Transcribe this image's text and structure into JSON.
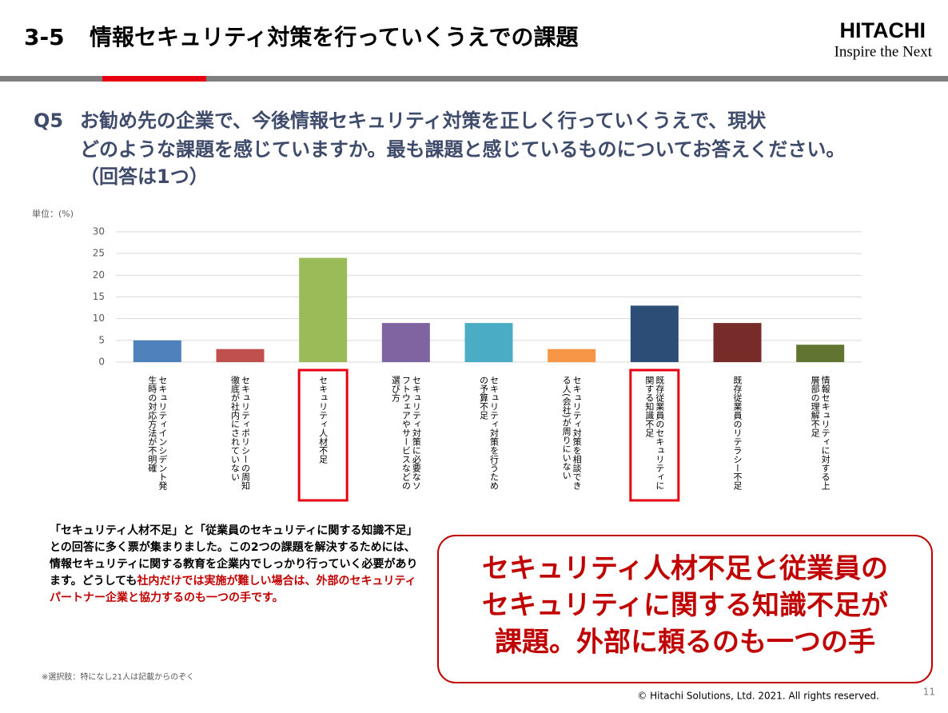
{
  "header": {
    "number": "3-5",
    "title": "情報セキュリティ対策を行っていくうえでの課題",
    "logo": "HITACHI",
    "tagline": "Inspire the Next"
  },
  "question": {
    "label": "Q5",
    "lines": [
      "お勧め先の企業で、今後情報セキュリティ対策を正しく行っていくうえで、現状",
      "どのような課題を感じていますか。最も課題と感じているものについてお答えください。",
      "（回答は1つ）"
    ]
  },
  "chart_data": {
    "type": "bar",
    "unit_label": "単位：(%)",
    "categories": [
      "セキュリティインシデント発生時の対応方法が不明確",
      "セキュリティポリシーの周知徹底が社内にされていない",
      "セキュリティ人材不足",
      "セキュリティ対策に必要なソフトウェアやサービスなどの選び方",
      "セキュリティ対策を行うための予算不足",
      "セキュリティ対策を相談できる人(会社)が周りにいない",
      "既存従業員のセキュリティに関する知識不足",
      "既存従業員のリテラシー不足",
      "情報セキュリティに対する上層部の理解不足"
    ],
    "values": [
      5,
      3,
      24,
      9,
      9,
      3,
      13,
      9,
      4
    ],
    "colors": [
      "#4f81bd",
      "#c0504d",
      "#9bbb59",
      "#8064a2",
      "#4bacc6",
      "#f79646",
      "#2c4d75",
      "#772c2a",
      "#5f7530"
    ],
    "highlight": [
      2,
      6
    ],
    "ylim": [
      0,
      30
    ],
    "yticks": [
      0,
      5,
      10,
      15,
      20,
      25,
      30
    ],
    "grid": true
  },
  "summary": {
    "body": "「セキュリティ人材不足」と「従業員のセキュリティに関する知識不足」との回答に多く票が集まりました。この2つの課題を解決するためには、情報セキュリティに関する教育を企業内でしっかり行っていく必要があります。どうしても",
    "emphasis": "社内だけでは実施が難しい場合は、外部のセキュリティパートナー企業と協力するのも一つの手です。"
  },
  "callout": {
    "lines": [
      "セキュリティ人材不足と従業員の",
      "セキュリティに関する知識不足が",
      "課題。外部に頼るのも一つの手"
    ]
  },
  "note": "※選択肢：特になし21人は記載からのぞく",
  "footer": {
    "copyright": "© Hitachi Solutions, Ltd. 2021. All rights reserved.",
    "page": "11"
  }
}
